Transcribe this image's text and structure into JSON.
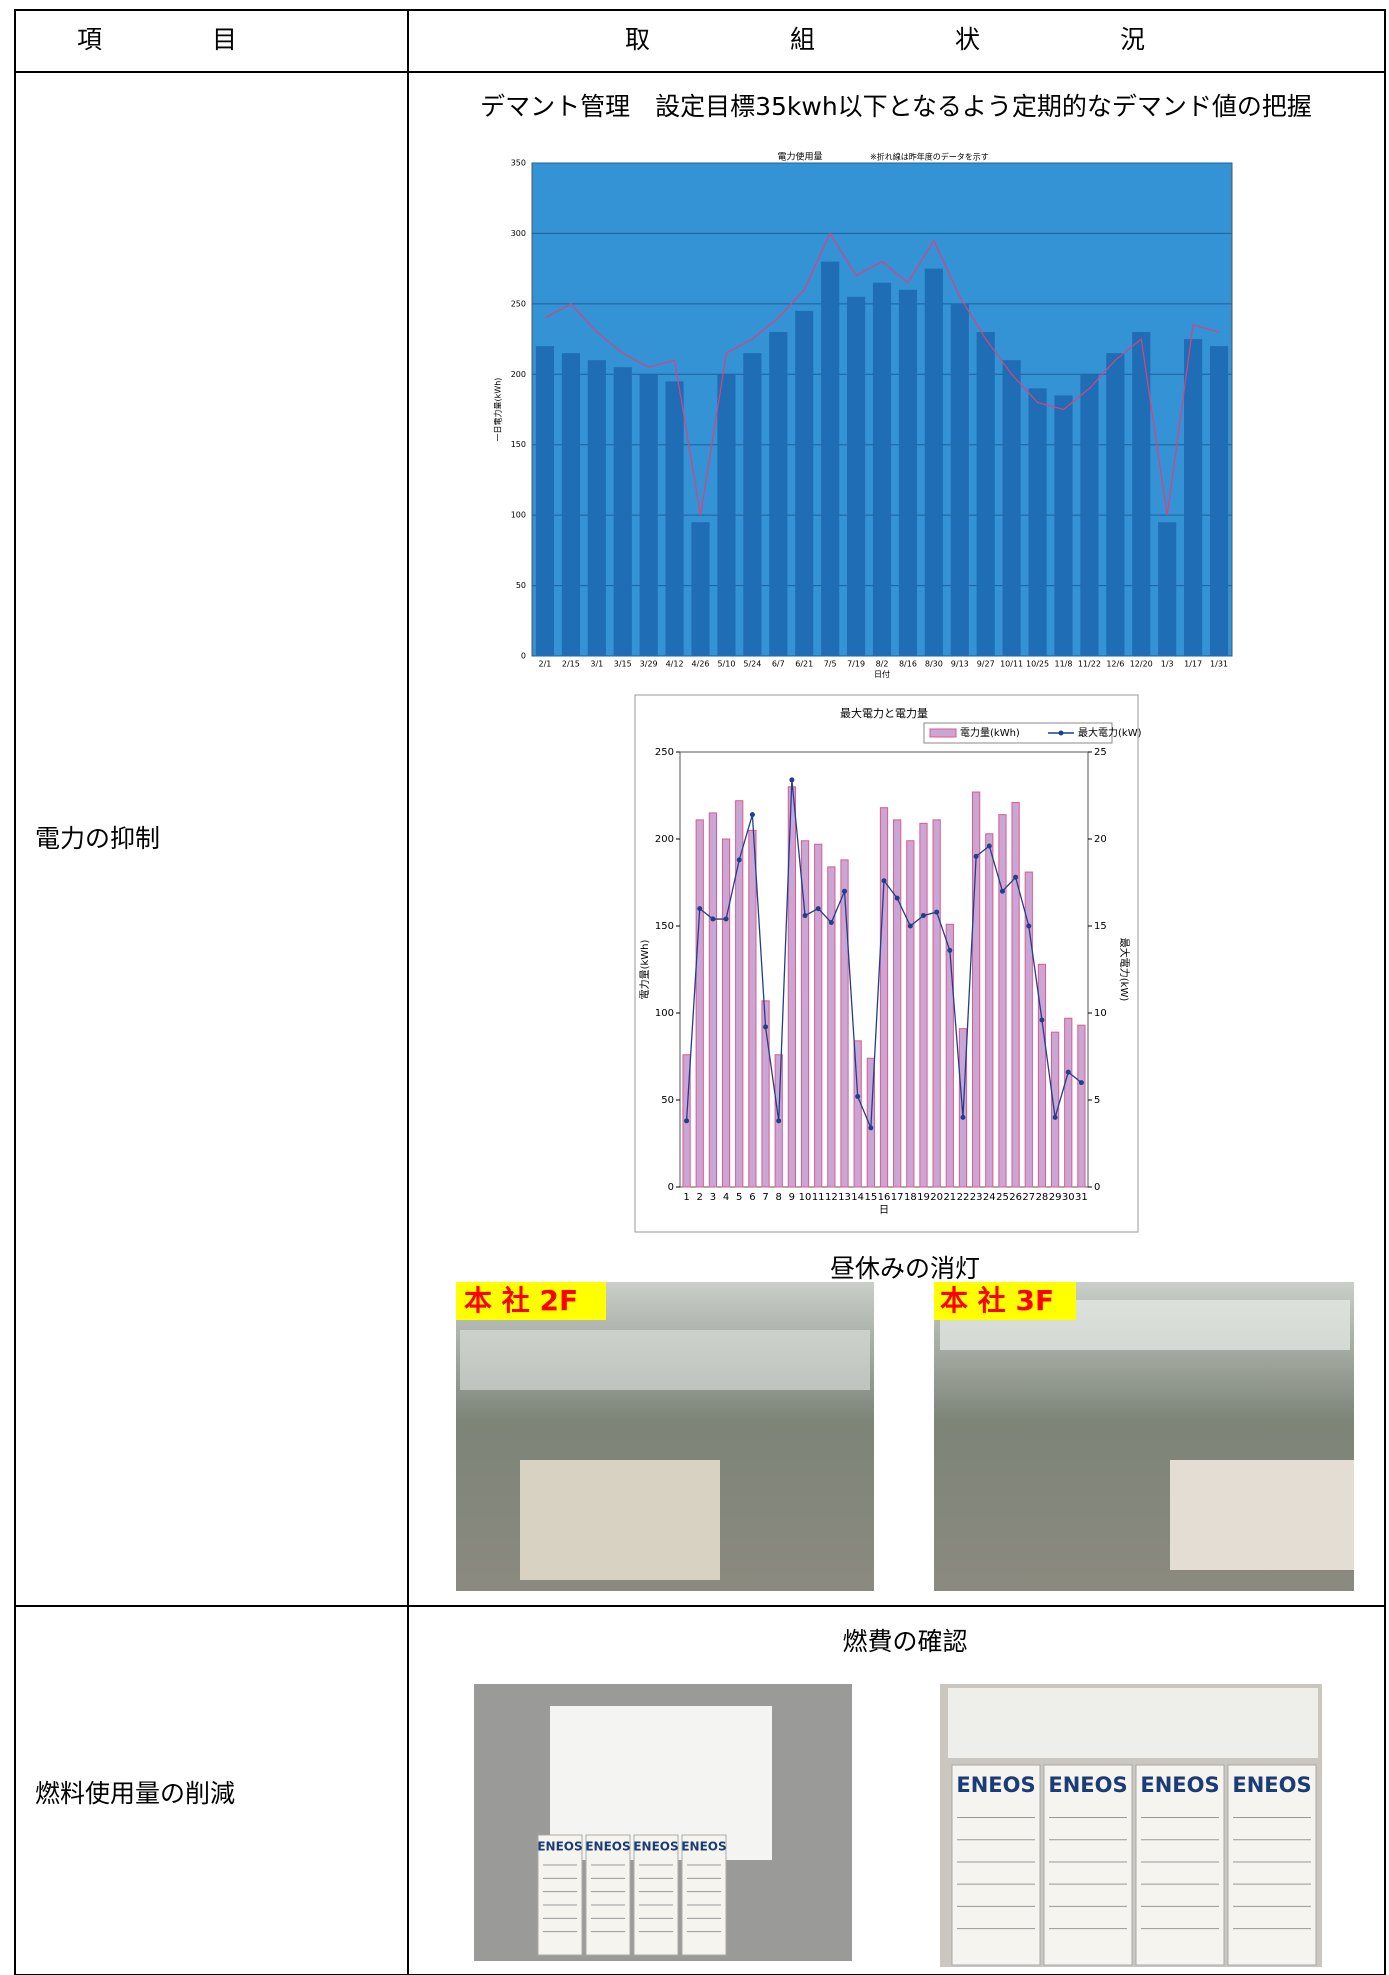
{
  "header": {
    "item": "項目",
    "status": "取組状況"
  },
  "rows": [
    {
      "item": "電力の抑制",
      "heading": "デマント管理　設定目標35kwh以下となるよう定期的なデマンド値の把握",
      "chart_data": [
        {
          "type": "bar",
          "title": "電力使用量",
          "subtitle": "※折れ線は昨年度のデータを示す",
          "y_label": "一日電力量(kWh)",
          "x_label": "日付",
          "categories": [
            "2/1",
            "2/15",
            "3/1",
            "3/15",
            "3/29",
            "4/12",
            "4/26",
            "5/10",
            "5/24",
            "6/7",
            "6/21",
            "7/5",
            "7/19",
            "8/2",
            "8/16",
            "8/30",
            "9/13",
            "9/27",
            "10/11",
            "10/25",
            "11/8",
            "11/22",
            "12/6",
            "12/20",
            "1/3",
            "1/17",
            "1/31"
          ],
          "series": [
            {
              "color": "#1f6db4",
              "kind": "bar",
              "values": [
                220,
                215,
                210,
                205,
                200,
                195,
                95,
                200,
                215,
                230,
                245,
                280,
                255,
                265,
                260,
                275,
                250,
                230,
                210,
                190,
                185,
                200,
                215,
                230,
                95,
                225,
                220
              ]
            },
            {
              "color": "#e0407a",
              "kind": "line",
              "values": [
                240,
                250,
                230,
                215,
                205,
                210,
                100,
                215,
                225,
                240,
                260,
                300,
                270,
                280,
                265,
                295,
                255,
                225,
                200,
                180,
                175,
                190,
                210,
                225,
                100,
                235,
                230
              ]
            }
          ],
          "ylim": [
            0,
            350
          ],
          "yticks": [
            0,
            50,
            100,
            150,
            200,
            250,
            300,
            350
          ],
          "grid": true,
          "plot_color": "#3493d4"
        },
        {
          "type": "bar",
          "title": "最大電力と電力量",
          "y_label": "電力量(kWh)",
          "y2_label": "最大電力(kW)",
          "x_label": "日",
          "categories": [
            "1",
            "2",
            "3",
            "4",
            "5",
            "6",
            "7",
            "8",
            "9",
            "10",
            "11",
            "12",
            "13",
            "14",
            "15",
            "16",
            "17",
            "18",
            "19",
            "20",
            "21",
            "22",
            "23",
            "24",
            "25",
            "26",
            "27",
            "28",
            "29",
            "30",
            "31"
          ],
          "series": [
            {
              "name": "電力量(kWh)",
              "color": "#c9a6d6",
              "kind": "bar",
              "values": [
                76,
                211,
                215,
                200,
                222,
                205,
                107,
                76,
                230,
                199,
                197,
                184,
                188,
                84,
                74,
                218,
                211,
                199,
                209,
                211,
                151,
                91,
                227,
                203,
                214,
                221,
                181,
                128,
                89,
                97,
                93
              ]
            },
            {
              "name": "最大電力(kW)",
              "color": "#1f3f8f",
              "kind": "line",
              "axis": "y2",
              "values": [
                3.8,
                16,
                15.4,
                15.4,
                18.8,
                21.4,
                9.2,
                3.8,
                23.4,
                15.6,
                16,
                15.2,
                17,
                5.2,
                3.4,
                17.6,
                16.6,
                15,
                15.6,
                15.8,
                13.6,
                4,
                19,
                19.6,
                17,
                17.8,
                15,
                9.6,
                4,
                6.6,
                6
              ]
            }
          ],
          "ylim": [
            0,
            250
          ],
          "yticks": [
            0,
            50,
            100,
            150,
            200,
            250
          ],
          "y2lim": [
            0,
            25
          ],
          "y2ticks": [
            0,
            5,
            10,
            15,
            20,
            25
          ],
          "grid": false,
          "markers": true,
          "plot_color": "#ffffff"
        }
      ],
      "photo_caption": "昼休みの消灯",
      "photos": [
        {
          "label": "本 社 2F"
        },
        {
          "label": "本 社 3F"
        }
      ]
    },
    {
      "item": "燃料使用量の削減",
      "heading": "燃費の確認",
      "photos": [
        {
          "labels": [
            "ENEOS",
            "ENEOS",
            "ENEOS",
            "ENEOS"
          ]
        },
        {
          "labels": [
            "ENEOS",
            "ENEOS",
            "ENEOS",
            "ENEOS"
          ]
        }
      ]
    }
  ]
}
